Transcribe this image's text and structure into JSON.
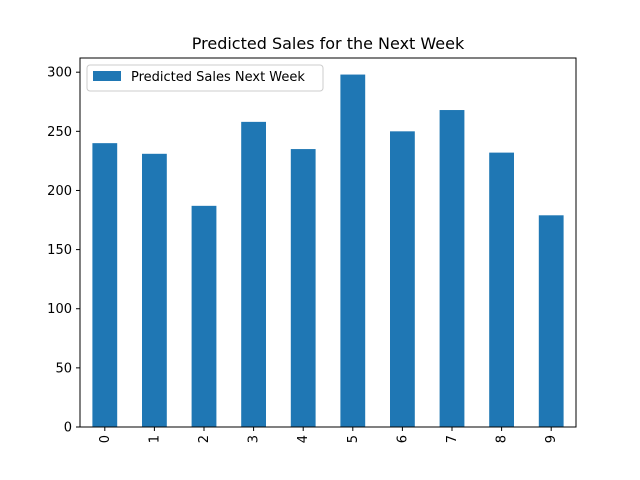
{
  "chart_data": {
    "type": "bar",
    "title": "Predicted Sales for the Next Week",
    "xlabel": "",
    "ylabel": "",
    "categories": [
      "0",
      "1",
      "2",
      "3",
      "4",
      "5",
      "6",
      "7",
      "8",
      "9"
    ],
    "series": [
      {
        "name": "Predicted Sales Next Week",
        "color": "#1f77b4",
        "values": [
          240,
          231,
          187,
          258,
          235,
          298,
          250,
          268,
          232,
          179
        ]
      }
    ],
    "ylim": [
      0,
      312
    ],
    "yticks": [
      0,
      50,
      100,
      150,
      200,
      250,
      300
    ],
    "grid": false,
    "legend_position": "top-left",
    "x_tick_rotation": "vertical"
  }
}
